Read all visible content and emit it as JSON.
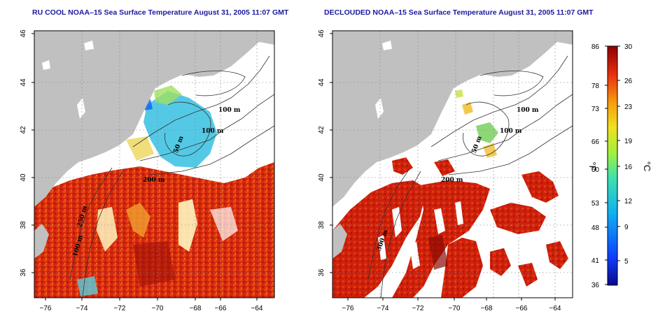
{
  "panels": [
    {
      "id": "left",
      "title": "RU COOL NOAA–15 Sea Surface Temperature August 31, 2005 11:07 GMT",
      "contour_labels": [
        "100 m",
        "100 m",
        "50 m",
        "200 m",
        "250 m",
        "100 m"
      ]
    },
    {
      "id": "right",
      "title": "DECLOUDED NOAA–15 Sea Surface Temperature August 31, 2005 11:07 GMT",
      "contour_labels": [
        "100 m",
        "100 m",
        "50 m",
        "200 m",
        "300 m"
      ]
    }
  ],
  "axes": {
    "lon_ticks": [
      "−76",
      "−74",
      "−72",
      "−70",
      "−68",
      "−66",
      "−64"
    ],
    "lat_ticks": [
      "36",
      "38",
      "40",
      "42",
      "44",
      "46"
    ]
  },
  "colorbar": {
    "f_ticks": [
      "86",
      "78",
      "73",
      "66",
      "60",
      "53",
      "48",
      "41",
      "36"
    ],
    "c_ticks": [
      "30",
      "26",
      "23",
      "19",
      "16",
      "12",
      "9",
      "5"
    ],
    "f_label": "°F",
    "c_label": "°C"
  },
  "colors": {
    "land": "#c0c0c0",
    "title": "#1a1aa0",
    "warm": "#d42a10",
    "cool": "#36c0e0"
  }
}
